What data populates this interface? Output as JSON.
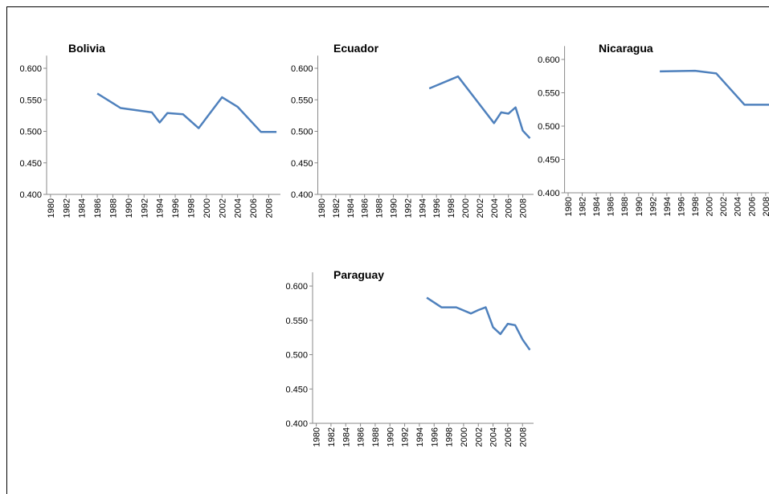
{
  "chart_data": [
    {
      "type": "line",
      "title": "Bolivia",
      "x": [
        1986,
        1989,
        1993,
        1994,
        1995,
        1997,
        1999,
        2002,
        2004,
        2007,
        2009
      ],
      "series": [
        {
          "name": "Bolivia",
          "color": "#4f81bd",
          "values": [
            0.56,
            0.537,
            0.53,
            0.514,
            0.529,
            0.527,
            0.505,
            0.554,
            0.539,
            0.499,
            0.499
          ]
        }
      ],
      "xlim": [
        1979.5,
        2009.5
      ],
      "xticks": [
        1980,
        1982,
        1984,
        1986,
        1988,
        1990,
        1992,
        1994,
        1996,
        1998,
        2000,
        2002,
        2004,
        2006,
        2008
      ],
      "ylim": [
        0.4,
        0.62
      ],
      "yticks": [
        {
          "value": 0.4,
          "label": "0.400"
        },
        {
          "value": 0.45,
          "label": "0.450"
        },
        {
          "value": 0.5,
          "label": "0.500"
        },
        {
          "value": 0.55,
          "label": "0.550"
        },
        {
          "value": 0.6,
          "label": "0.600"
        }
      ]
    },
    {
      "type": "line",
      "title": "Ecuador",
      "x": [
        1995,
        1999,
        2004,
        2005,
        2006,
        2007,
        2008,
        2009
      ],
      "series": [
        {
          "name": "Ecuador",
          "color": "#4f81bd",
          "values": [
            0.568,
            0.587,
            0.513,
            0.53,
            0.528,
            0.538,
            0.501,
            0.489
          ]
        }
      ],
      "xlim": [
        1979.5,
        2009.5
      ],
      "xticks": [
        1980,
        1982,
        1984,
        1986,
        1988,
        1990,
        1992,
        1994,
        1996,
        1998,
        2000,
        2002,
        2004,
        2006,
        2008
      ],
      "ylim": [
        0.4,
        0.62
      ],
      "yticks": [
        {
          "value": 0.4,
          "label": "0.400"
        },
        {
          "value": 0.45,
          "label": "0.450"
        },
        {
          "value": 0.5,
          "label": "0.500"
        },
        {
          "value": 0.55,
          "label": "0.550"
        },
        {
          "value": 0.6,
          "label": "0.600"
        }
      ]
    },
    {
      "type": "line",
      "title": "Nicaragua",
      "x": [
        1993,
        1998,
        2001,
        2005,
        2009
      ],
      "series": [
        {
          "name": "Nicaragua",
          "color": "#4f81bd",
          "values": [
            0.582,
            0.583,
            0.579,
            0.532,
            0.532
          ]
        }
      ],
      "xlim": [
        1979.5,
        2009.5
      ],
      "xticks": [
        1980,
        1982,
        1984,
        1986,
        1988,
        1990,
        1992,
        1994,
        1996,
        1998,
        2000,
        2002,
        2004,
        2006,
        2008
      ],
      "ylim": [
        0.4,
        0.62
      ],
      "yticks": [
        {
          "value": 0.4,
          "label": "0.400"
        },
        {
          "value": 0.45,
          "label": "0.450"
        },
        {
          "value": 0.5,
          "label": "0.500"
        },
        {
          "value": 0.55,
          "label": "0.550"
        },
        {
          "value": 0.6,
          "label": "0.600"
        }
      ]
    },
    {
      "type": "line",
      "title": "Paraguay",
      "x": [
        1995,
        1997,
        1999,
        2001,
        2002,
        2003,
        2004,
        2005,
        2006,
        2007,
        2008,
        2009
      ],
      "series": [
        {
          "name": "Paraguay",
          "color": "#4f81bd",
          "values": [
            0.583,
            0.569,
            0.569,
            0.56,
            0.565,
            0.569,
            0.54,
            0.53,
            0.545,
            0.543,
            0.522,
            0.507
          ]
        }
      ],
      "xlim": [
        1979.5,
        2009.5
      ],
      "xticks": [
        1980,
        1982,
        1984,
        1986,
        1988,
        1990,
        1992,
        1994,
        1996,
        1998,
        2000,
        2002,
        2004,
        2006,
        2008
      ],
      "ylim": [
        0.4,
        0.62
      ],
      "yticks": [
        {
          "value": 0.4,
          "label": "0.400"
        },
        {
          "value": 0.45,
          "label": "0.450"
        },
        {
          "value": 0.5,
          "label": "0.500"
        },
        {
          "value": 0.55,
          "label": "0.550"
        },
        {
          "value": 0.6,
          "label": "0.600"
        }
      ]
    }
  ]
}
